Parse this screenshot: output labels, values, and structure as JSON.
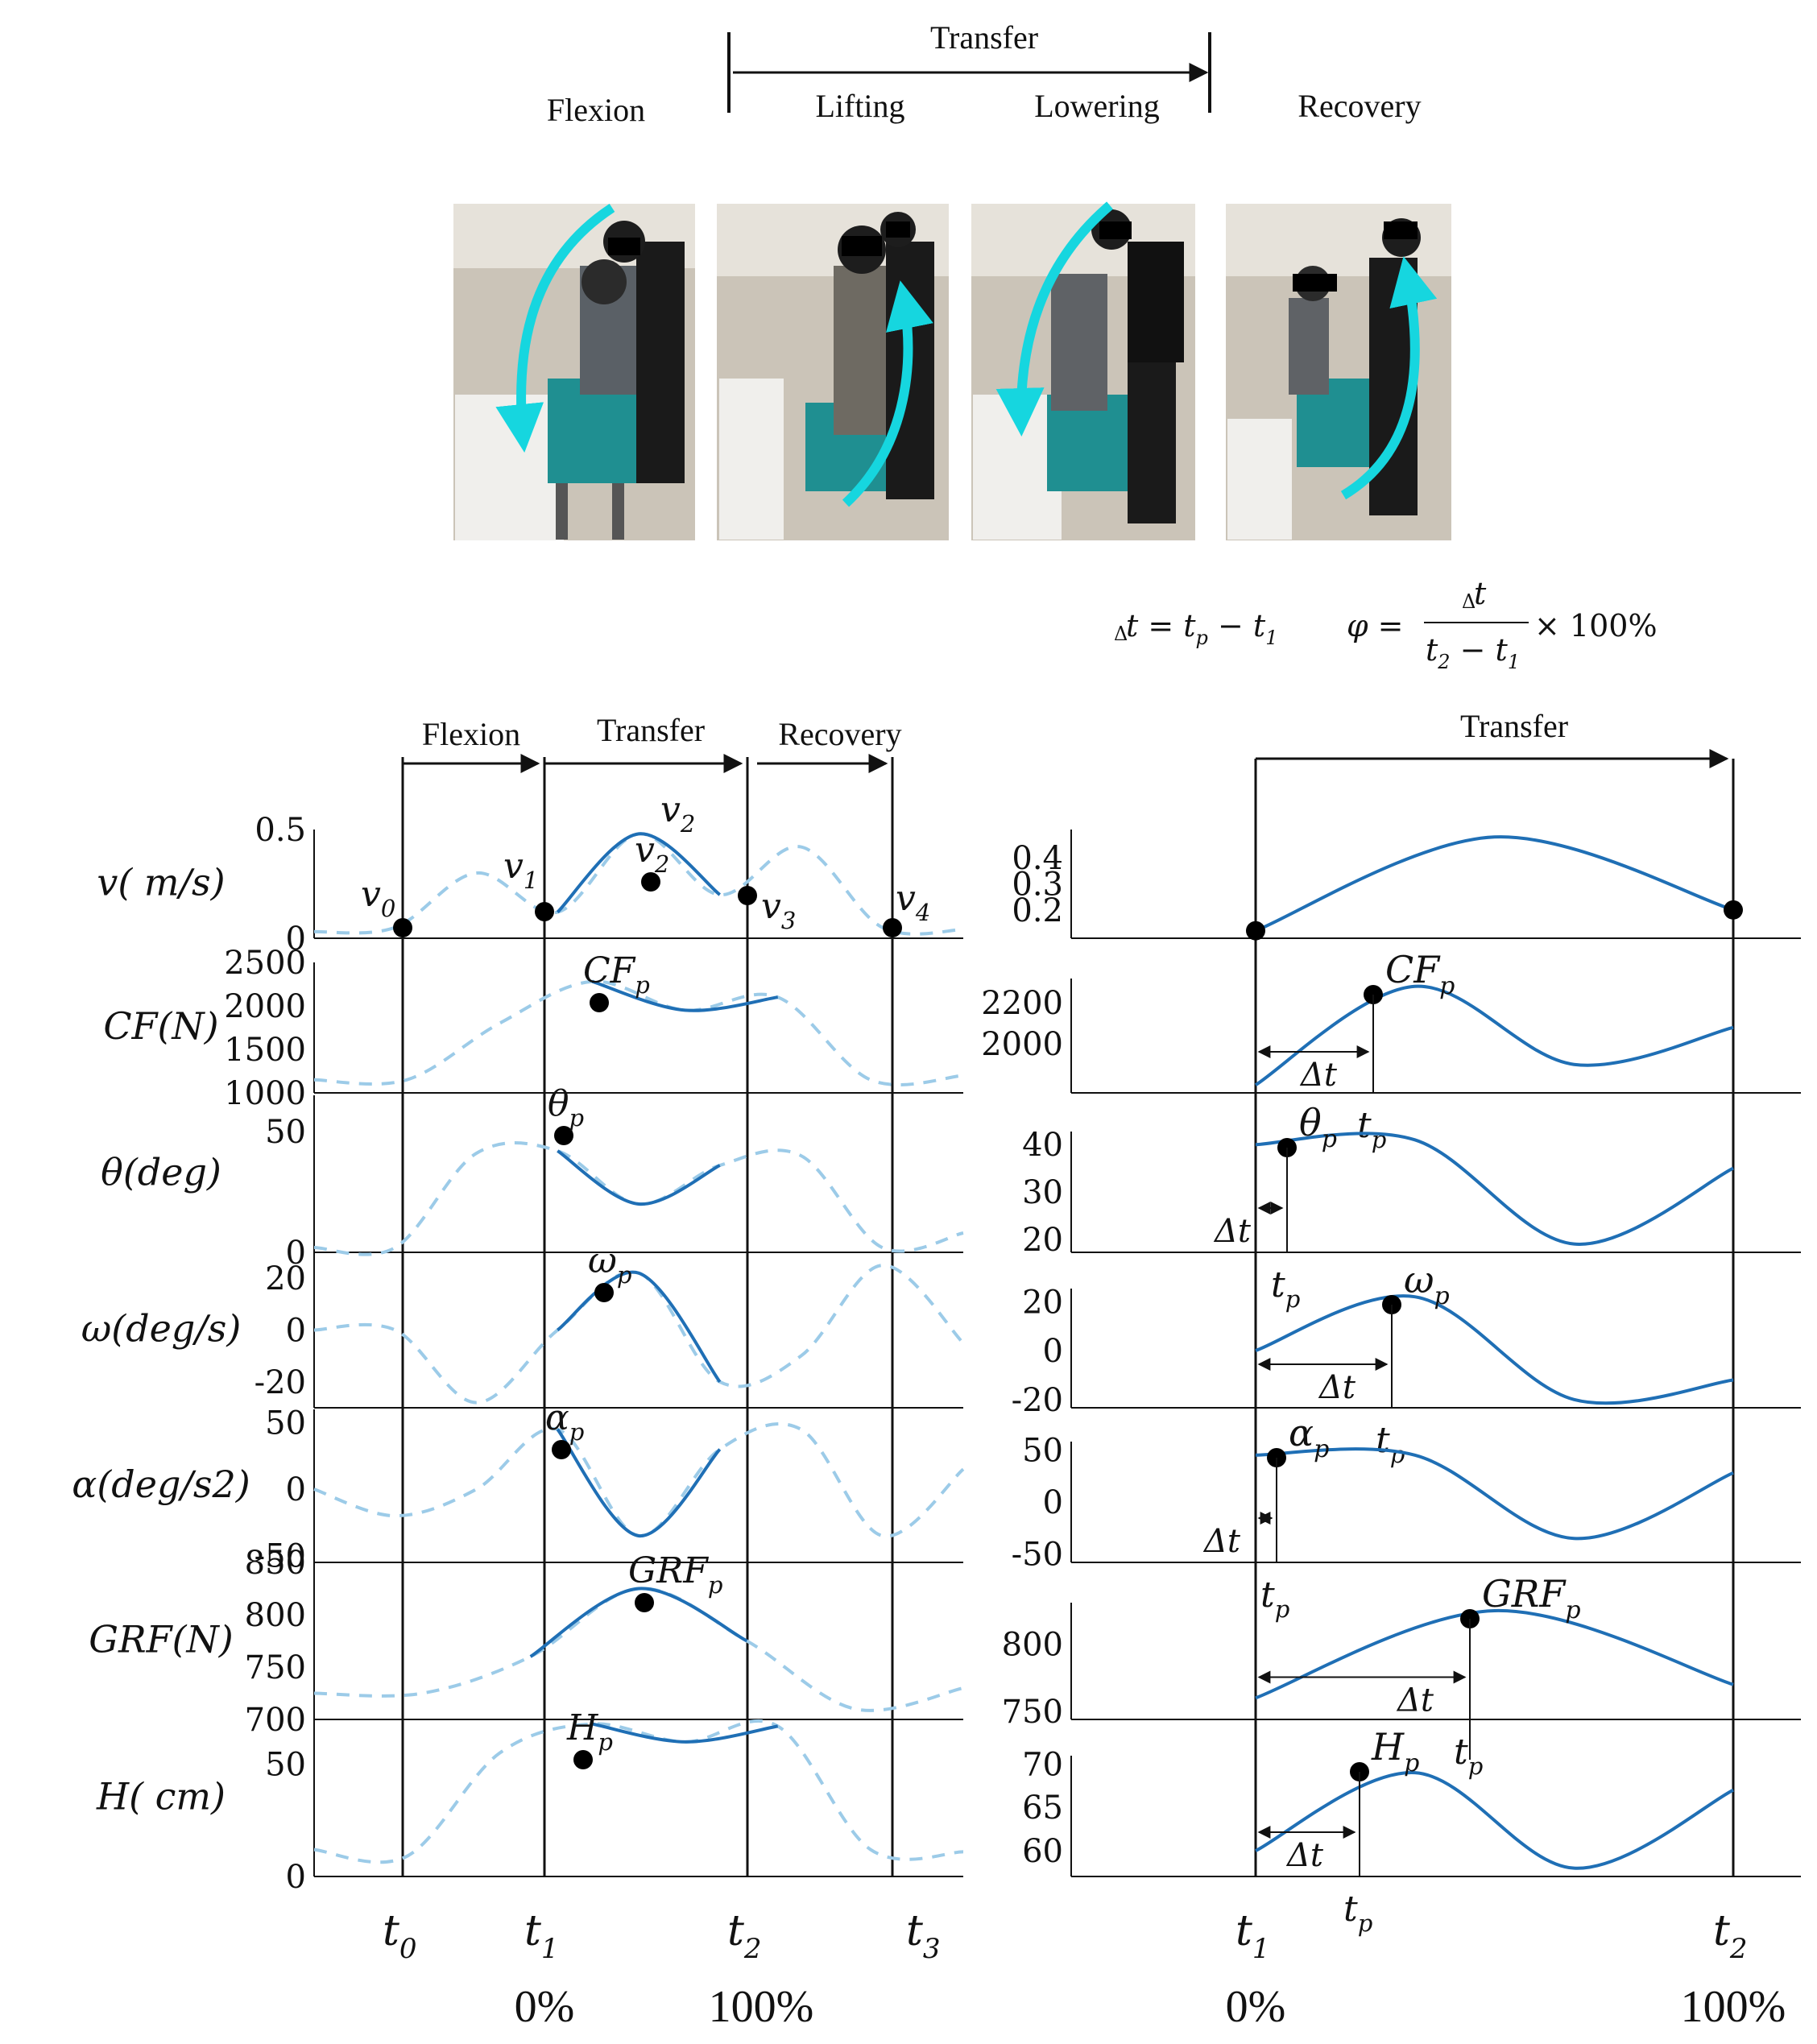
{
  "header": {
    "transfer": "Transfer",
    "flexion": "Flexion",
    "lifting": "Lifting",
    "lowering": "Lowering",
    "recovery": "Recovery"
  },
  "formula": {
    "delta_t": "Δt = t_p − t_1",
    "phi": "φ = Δt / (t_2 − t_1) × 100%"
  },
  "left": {
    "phases": [
      "Flexion",
      "Transfer",
      "Recovery"
    ],
    "time_labels": [
      "t0",
      "t1",
      "t2",
      "t3"
    ],
    "percent_labels": [
      "0%",
      "100%"
    ],
    "velocity_points": [
      "v0",
      "v1",
      "v2",
      "v3",
      "v4"
    ]
  },
  "right": {
    "phase": "Transfer",
    "time_labels": [
      "t1",
      "t2"
    ],
    "percent_labels": [
      "0%",
      "100%"
    ]
  },
  "colors": {
    "solid": "#1f6fb5",
    "dashed": "#9ccbe8",
    "arrow": "#16d6df"
  },
  "chart_data": [
    {
      "type": "line",
      "side": "left",
      "ylabel": "v( m/s)",
      "yticks": [
        "0",
        "0.5"
      ],
      "ylim": [
        0,
        0.5
      ],
      "peak_label": "v2",
      "series": [
        {
          "values": [
            0.03,
            0.05,
            0.3,
            0.12,
            0.48,
            0.2,
            0.42,
            0.05,
            0.04
          ]
        }
      ]
    },
    {
      "type": "line",
      "side": "left",
      "ylabel": "CF(N)",
      "yticks": [
        "1000",
        "1500",
        "2000",
        "2500"
      ],
      "ylim": [
        1000,
        2500
      ],
      "peak_label": "CFp",
      "series": [
        {
          "values": [
            1150,
            1150,
            1800,
            2280,
            1950,
            2100,
            1150,
            1200
          ]
        }
      ]
    },
    {
      "type": "line",
      "side": "left",
      "ylabel": "θ(deg)",
      "yticks": [
        "0",
        "50"
      ],
      "ylim": [
        0,
        65
      ],
      "peak_label": "θp",
      "series": [
        {
          "values": [
            2,
            2,
            41,
            42,
            20,
            36,
            40,
            2,
            8
          ]
        }
      ]
    },
    {
      "type": "line",
      "side": "left",
      "ylabel": "ω(deg/s)",
      "yticks": [
        "-20",
        "0",
        "20"
      ],
      "ylim": [
        -30,
        30
      ],
      "peak_label": "ωp",
      "series": [
        {
          "values": [
            0,
            0,
            -28,
            0,
            22,
            -20,
            -10,
            25,
            -5
          ]
        }
      ]
    },
    {
      "type": "line",
      "side": "left",
      "ylabel": "α(deg/s2)",
      "yticks": [
        "-50",
        "0",
        "50"
      ],
      "ylim": [
        -55,
        60
      ],
      "peak_label": "αp",
      "series": [
        {
          "values": [
            0,
            -20,
            0,
            45,
            -35,
            30,
            45,
            -35,
            15
          ]
        }
      ]
    },
    {
      "type": "line",
      "side": "left",
      "ylabel": "GRF(N)",
      "yticks": [
        "700",
        "750",
        "800",
        "850"
      ],
      "ylim": [
        700,
        850
      ],
      "peak_label": "GRFp",
      "series": [
        {
          "values": [
            725,
            725,
            760,
            825,
            775,
            710,
            730
          ]
        }
      ]
    },
    {
      "type": "line",
      "side": "left",
      "ylabel": "H( cm)",
      "yticks": [
        "0",
        "50"
      ],
      "ylim": [
        0,
        70
      ],
      "peak_label": "Hp",
      "series": [
        {
          "values": [
            12,
            9,
            55,
            68,
            60,
            67,
            12,
            11
          ]
        }
      ]
    },
    {
      "type": "line",
      "side": "right",
      "yticks": [
        "0.2",
        "0.3",
        "0.4"
      ],
      "series": [
        {
          "values": [
            0.12,
            0.48,
            0.2
          ]
        }
      ]
    },
    {
      "type": "line",
      "side": "right",
      "yticks": [
        "2000",
        "2200"
      ],
      "peak_label": "CFp",
      "series": [
        {
          "values": [
            1800,
            2280,
            1900,
            2080
          ]
        }
      ]
    },
    {
      "type": "line",
      "side": "right",
      "yticks": [
        "20",
        "30",
        "40"
      ],
      "peak_label": "θp",
      "series": [
        {
          "values": [
            40,
            41,
            19,
            35
          ]
        }
      ]
    },
    {
      "type": "line",
      "side": "right",
      "yticks": [
        "-20",
        "0",
        "20"
      ],
      "peak_label": "ωp",
      "series": [
        {
          "values": [
            0,
            22,
            -20,
            -12
          ]
        }
      ]
    },
    {
      "type": "line",
      "side": "right",
      "yticks": [
        "-50",
        "0",
        "50"
      ],
      "peak_label": "αp",
      "series": [
        {
          "values": [
            45,
            45,
            -35,
            28
          ]
        }
      ]
    },
    {
      "type": "line",
      "side": "right",
      "yticks": [
        "750",
        "800"
      ],
      "peak_label": "GRFp",
      "series": [
        {
          "values": [
            760,
            825,
            770
          ]
        }
      ]
    },
    {
      "type": "line",
      "side": "right",
      "yticks": [
        "60",
        "65",
        "70"
      ],
      "peak_label": "Hp",
      "series": [
        {
          "values": [
            60,
            69,
            58,
            67
          ]
        }
      ]
    }
  ]
}
